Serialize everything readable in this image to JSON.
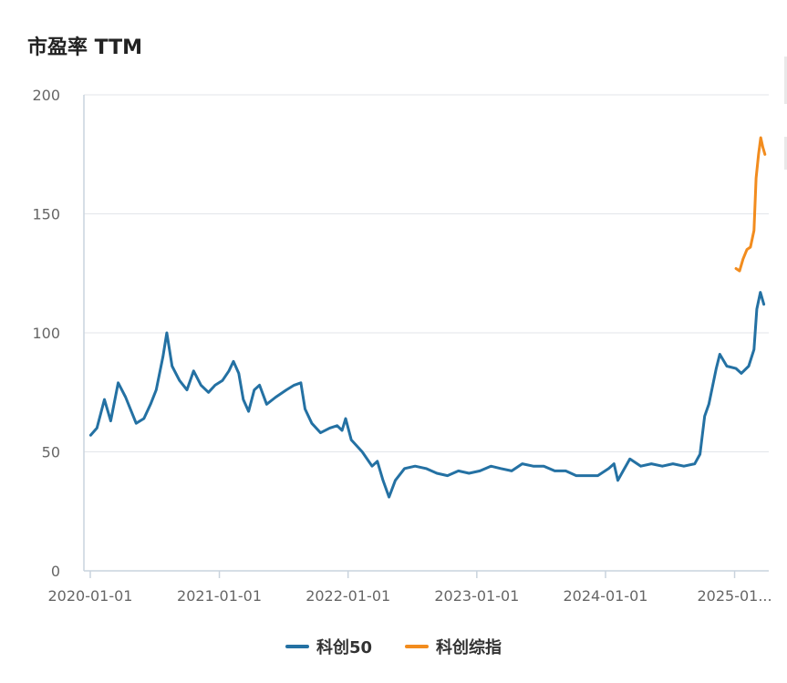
{
  "chart_data": {
    "type": "line",
    "title": "市盈率 TTM",
    "xlabel": "",
    "ylabel": "",
    "ylim": [
      0,
      200
    ],
    "y_ticks": [
      "0",
      "50",
      "100",
      "150",
      "200"
    ],
    "x_ticks": [
      "2020-01-01",
      "2021-01-01",
      "2022-01-01",
      "2023-01-01",
      "2024-01-01",
      "2025-01..."
    ],
    "grid": true,
    "legend_placement": "bottom-center",
    "series": [
      {
        "name": "科创50",
        "color": "#2471a3",
        "points": [
          [
            "2020-01-02",
            57
          ],
          [
            "2020-01-20",
            60
          ],
          [
            "2020-02-10",
            72
          ],
          [
            "2020-02-28",
            63
          ],
          [
            "2020-03-20",
            79
          ],
          [
            "2020-04-10",
            73
          ],
          [
            "2020-05-10",
            62
          ],
          [
            "2020-06-01",
            64
          ],
          [
            "2020-06-20",
            70
          ],
          [
            "2020-07-06",
            76
          ],
          [
            "2020-07-25",
            90
          ],
          [
            "2020-08-05",
            100
          ],
          [
            "2020-08-20",
            86
          ],
          [
            "2020-09-10",
            80
          ],
          [
            "2020-10-01",
            76
          ],
          [
            "2020-10-20",
            84
          ],
          [
            "2020-11-10",
            78
          ],
          [
            "2020-12-01",
            75
          ],
          [
            "2020-12-20",
            78
          ],
          [
            "2021-01-10",
            80
          ],
          [
            "2021-01-28",
            84
          ],
          [
            "2021-02-10",
            88
          ],
          [
            "2021-02-25",
            83
          ],
          [
            "2021-03-10",
            72
          ],
          [
            "2021-03-25",
            67
          ],
          [
            "2021-04-10",
            76
          ],
          [
            "2021-04-25",
            78
          ],
          [
            "2021-05-15",
            70
          ],
          [
            "2021-06-10",
            73
          ],
          [
            "2021-07-10",
            76
          ],
          [
            "2021-08-01",
            78
          ],
          [
            "2021-08-20",
            79
          ],
          [
            "2021-09-01",
            68
          ],
          [
            "2021-09-20",
            62
          ],
          [
            "2021-10-15",
            58
          ],
          [
            "2021-11-10",
            60
          ],
          [
            "2021-12-01",
            61
          ],
          [
            "2021-12-15",
            59
          ],
          [
            "2021-12-25",
            64
          ],
          [
            "2022-01-10",
            55
          ],
          [
            "2022-02-10",
            50
          ],
          [
            "2022-03-10",
            44
          ],
          [
            "2022-03-25",
            46
          ],
          [
            "2022-04-10",
            38
          ],
          [
            "2022-04-27",
            31
          ],
          [
            "2022-05-15",
            38
          ],
          [
            "2022-06-10",
            43
          ],
          [
            "2022-07-10",
            44
          ],
          [
            "2022-08-10",
            43
          ],
          [
            "2022-09-10",
            41
          ],
          [
            "2022-10-10",
            40
          ],
          [
            "2022-11-10",
            42
          ],
          [
            "2022-12-10",
            41
          ],
          [
            "2023-01-10",
            42
          ],
          [
            "2023-02-10",
            44
          ],
          [
            "2023-03-10",
            43
          ],
          [
            "2023-04-10",
            42
          ],
          [
            "2023-05-10",
            45
          ],
          [
            "2023-06-10",
            44
          ],
          [
            "2023-07-10",
            44
          ],
          [
            "2023-08-10",
            42
          ],
          [
            "2023-09-10",
            42
          ],
          [
            "2023-10-10",
            40
          ],
          [
            "2023-11-10",
            40
          ],
          [
            "2023-12-10",
            40
          ],
          [
            "2024-01-10",
            43
          ],
          [
            "2024-01-25",
            45
          ],
          [
            "2024-02-05",
            38
          ],
          [
            "2024-02-20",
            42
          ],
          [
            "2024-03-10",
            47
          ],
          [
            "2024-04-10",
            44
          ],
          [
            "2024-05-10",
            45
          ],
          [
            "2024-06-10",
            44
          ],
          [
            "2024-07-10",
            45
          ],
          [
            "2024-08-10",
            44
          ],
          [
            "2024-09-10",
            45
          ],
          [
            "2024-09-25",
            49
          ],
          [
            "2024-10-08",
            65
          ],
          [
            "2024-10-20",
            70
          ],
          [
            "2024-11-10",
            85
          ],
          [
            "2024-11-20",
            91
          ],
          [
            "2024-12-10",
            86
          ],
          [
            "2025-01-05",
            85
          ],
          [
            "2025-01-20",
            83
          ],
          [
            "2025-02-10",
            86
          ],
          [
            "2025-02-25",
            93
          ],
          [
            "2025-03-05",
            110
          ],
          [
            "2025-03-15",
            117
          ],
          [
            "2025-03-25",
            112
          ]
        ]
      },
      {
        "name": "科创综指",
        "color": "#f28c1e",
        "points": [
          [
            "2025-01-05",
            127
          ],
          [
            "2025-01-15",
            126
          ],
          [
            "2025-01-25",
            131
          ],
          [
            "2025-02-05",
            135
          ],
          [
            "2025-02-15",
            136
          ],
          [
            "2025-02-25",
            143
          ],
          [
            "2025-03-03",
            165
          ],
          [
            "2025-03-10",
            175
          ],
          [
            "2025-03-16",
            182
          ],
          [
            "2025-03-22",
            178
          ],
          [
            "2025-03-28",
            175
          ]
        ]
      }
    ]
  }
}
